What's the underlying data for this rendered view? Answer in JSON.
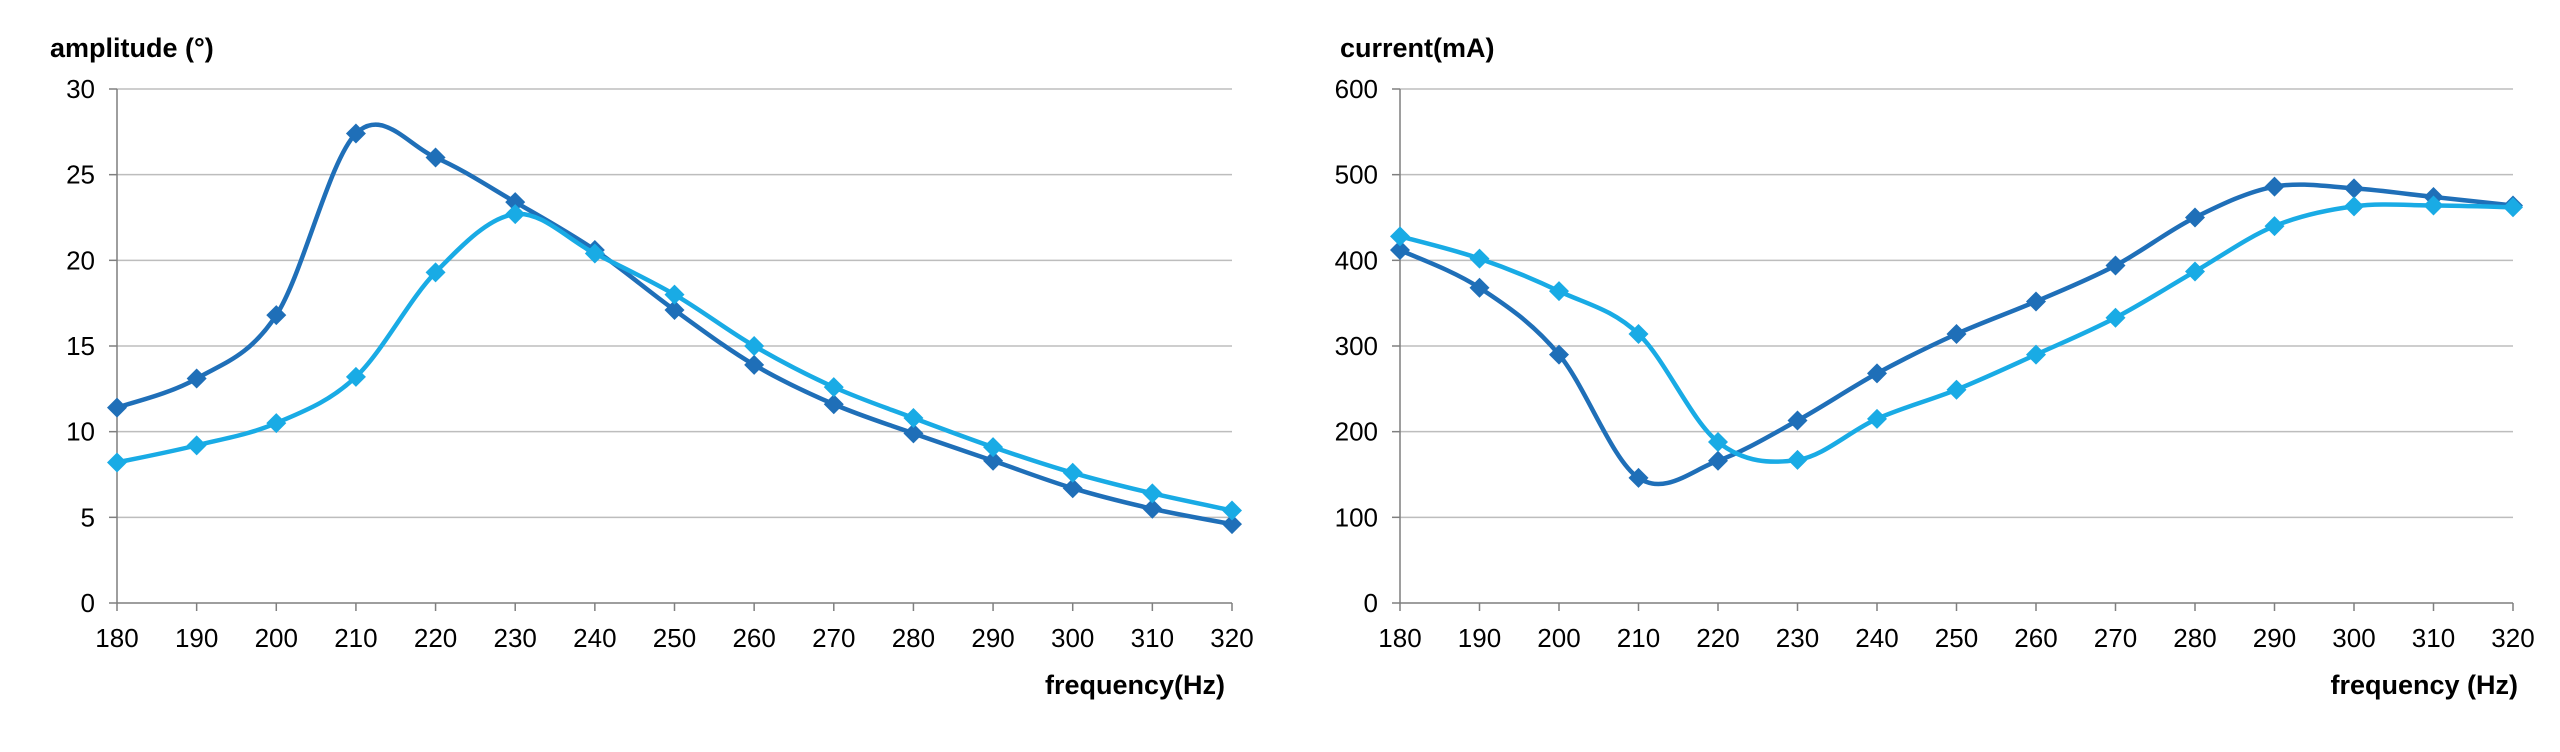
{
  "colors": {
    "series_dark": "#1F6FB8",
    "series_light": "#19ABE5",
    "grid": "#BDBDBD",
    "axis": "#7F7F7F"
  },
  "chart_data": [
    {
      "type": "line",
      "smooth": true,
      "marker": "diamond",
      "ylabel": "amplitude (°)",
      "xlabel": "frequency(Hz)",
      "x": [
        180,
        190,
        200,
        210,
        220,
        230,
        240,
        250,
        260,
        270,
        280,
        290,
        300,
        310,
        320
      ],
      "xlim": [
        180,
        320
      ],
      "ylim": [
        0,
        30
      ],
      "yticks": [
        0,
        5,
        10,
        15,
        20,
        25,
        30
      ],
      "grid": true,
      "legend": "none",
      "series": [
        {
          "color": "#1F6FB8",
          "values": [
            11.4,
            13.1,
            16.8,
            27.4,
            26.0,
            23.4,
            20.6,
            17.1,
            13.9,
            11.6,
            9.9,
            8.3,
            6.7,
            5.5,
            4.6
          ]
        },
        {
          "color": "#19ABE5",
          "values": [
            8.2,
            9.2,
            10.5,
            13.2,
            19.3,
            22.7,
            20.4,
            18.0,
            15.0,
            12.6,
            10.8,
            9.1,
            7.6,
            6.4,
            5.4
          ]
        }
      ]
    },
    {
      "type": "line",
      "smooth": true,
      "marker": "diamond",
      "ylabel": "current(mA)",
      "xlabel": "frequency (Hz)",
      "x": [
        180,
        190,
        200,
        210,
        220,
        230,
        240,
        250,
        260,
        270,
        280,
        290,
        300,
        310,
        320
      ],
      "xlim": [
        180,
        320
      ],
      "ylim": [
        0,
        600
      ],
      "yticks": [
        0,
        100,
        200,
        300,
        400,
        500,
        600
      ],
      "grid": true,
      "legend": "none",
      "series": [
        {
          "color": "#1F6FB8",
          "values": [
            412,
            368,
            290,
            146,
            166,
            213,
            268,
            314,
            352,
            394,
            450,
            486,
            484,
            474,
            464
          ]
        },
        {
          "color": "#19ABE5",
          "values": [
            428,
            402,
            364,
            314,
            188,
            167,
            215,
            249,
            290,
            333,
            387,
            440,
            463,
            464,
            462
          ]
        }
      ]
    }
  ]
}
